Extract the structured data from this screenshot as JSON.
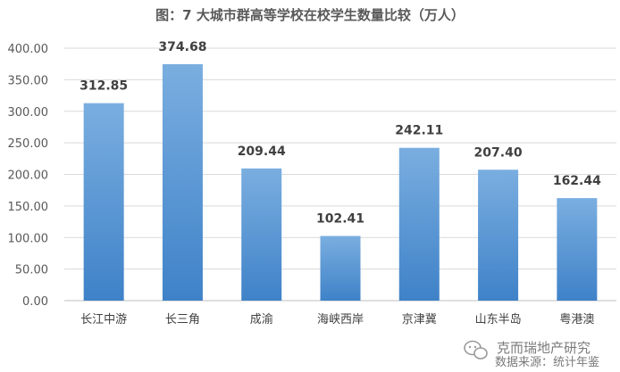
{
  "chart_data": {
    "type": "bar",
    "title": "图：7 大城市群高等学校在校学生数量比较（万人）",
    "categories": [
      "长江中游",
      "长三角",
      "成渝",
      "海峡西岸",
      "京津冀",
      "山东半岛",
      "粤港澳"
    ],
    "values": [
      312.85,
      374.68,
      209.44,
      102.41,
      242.11,
      207.4,
      162.44
    ],
    "value_labels": [
      "312.85",
      "374.68",
      "209.44",
      "102.41",
      "242.11",
      "207.40",
      "162.44"
    ],
    "y_ticks": [
      "0.00",
      "50.00",
      "100.00",
      "150.00",
      "200.00",
      "250.00",
      "300.00",
      "350.00",
      "400.00"
    ],
    "ylim": [
      0,
      400
    ],
    "grid": true,
    "legend": "none",
    "bar_color_top": "#7aaee0",
    "bar_color_bottom": "#3f82c8"
  },
  "watermark": {
    "brand": "克而瑞地产研究",
    "source": "数据来源：统计年鉴",
    "icon": "wechat-icon"
  }
}
